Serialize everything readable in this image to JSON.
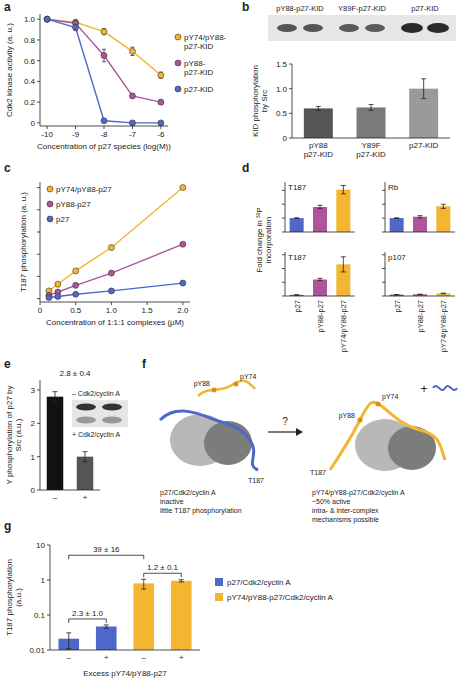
{
  "chart_data": [
    {
      "panel": "a",
      "type": "line",
      "xlabel": "Concentration of p27 species (log(M))",
      "ylabel": "Cdk2 kinase activity (a. u.)",
      "x": [
        -10,
        -9,
        -8,
        -7,
        -6
      ],
      "series": [
        {
          "name": "pY74/pY88-p27-KID",
          "color": "#f2b630",
          "marker": "circle",
          "values": [
            1.0,
            0.97,
            0.88,
            0.69,
            0.46
          ],
          "errors": [
            0.01,
            0.02,
            0.03,
            0.04,
            0.03
          ]
        },
        {
          "name": "pY88-p27-KID",
          "color": "#b0559c",
          "marker": "circle",
          "values": [
            1.0,
            0.96,
            0.65,
            0.26,
            0.2
          ],
          "errors": [
            0.01,
            0.03,
            0.06,
            0.02,
            0.02
          ]
        },
        {
          "name": "p27-KID",
          "color": "#4f67c8",
          "marker": "circle",
          "values": [
            1.0,
            0.92,
            0.02,
            0.0,
            0.0
          ],
          "errors": [
            0.01,
            0.03,
            0.01,
            0.01,
            0.01
          ]
        }
      ],
      "xlim": [
        -10.25,
        -5.75
      ],
      "ylim": [
        -0.03,
        1.05
      ],
      "xticks": [
        -10,
        -9,
        -8,
        -7,
        -6
      ],
      "yticks": [
        0,
        0.2,
        0.4,
        0.6,
        0.8,
        {
          "value": 1,
          "label": "1.0"
        }
      ],
      "legend": "right"
    },
    {
      "panel": "b",
      "type": "bar",
      "ylabel": "KID phosphorylation by Src",
      "categories": [
        "pY88 p27-KID",
        "Y89F p27-KID",
        "p27-KID"
      ],
      "values": [
        0.6,
        0.62,
        1.0
      ],
      "errors": [
        0.04,
        0.06,
        0.2
      ],
      "colors": [
        "#555555",
        "#7a7a7a",
        "#9a9a9a"
      ],
      "ylim": [
        0,
        1.5
      ],
      "yticks": [
        0,
        0.5,
        {
          "value": 1,
          "label": "1.0"
        },
        1.5
      ],
      "gel_labels": [
        "pY88-p27-KID",
        "Y89F-p27-KID",
        "p27-KID"
      ]
    },
    {
      "panel": "c",
      "type": "line",
      "xlabel": "Concentration of 1:1:1 complexes (μM)",
      "ylabel": "T187 phosphorylation (a. u.)",
      "x": [
        0.125,
        0.25,
        0.5,
        1,
        2
      ],
      "series": [
        {
          "name": "pY74/pY88-p27",
          "color": "#f2b630",
          "marker": "circle",
          "values": [
            0.07,
            0.13,
            0.25,
            0.46,
            1.0
          ]
        },
        {
          "name": "pY88-p27",
          "color": "#b0559c",
          "marker": "circle",
          "values": [
            0.03,
            0.06,
            0.12,
            0.23,
            0.49
          ]
        },
        {
          "name": "p27",
          "color": "#4f67c8",
          "marker": "circle",
          "values": [
            0.01,
            0.02,
            0.04,
            0.07,
            0.14
          ]
        }
      ],
      "xlim": [
        0,
        2.1
      ],
      "ylim": [
        -0.03,
        1.05
      ],
      "xticks": [
        0,
        0.5,
        {
          "value": 1,
          "label": "1.0"
        },
        1.5,
        {
          "value": 2,
          "label": "2.0"
        }
      ],
      "yticks": [
        0,
        0.2,
        0.4,
        0.6,
        0.8,
        1
      ],
      "tick_labels": "x",
      "legend": "upper left"
    },
    {
      "panel": "d",
      "type": "bar",
      "title": "T187",
      "ylabel": "Fold change in ³²P incorporation",
      "categories": [
        "p27",
        "pY88-p27",
        "pY74/pY88-p27"
      ],
      "values": [
        1,
        1.8,
        3.05
      ],
      "errors": [
        0.02,
        0.12,
        0.3
      ],
      "colors": [
        "#4f67c8",
        "#b0559c",
        "#f2b630"
      ],
      "ylim": [
        0,
        3.6
      ],
      "yticks": [
        0,
        1,
        2,
        3
      ],
      "tick_labels": false
    },
    {
      "type": "bar",
      "title": "Rb",
      "categories": [
        "p27",
        "pY88-p27",
        "pY74/pY88-p27"
      ],
      "values": [
        1,
        1.1,
        1.85
      ],
      "errors": [
        0.02,
        0.08,
        0.15
      ],
      "colors": [
        "#4f67c8",
        "#b0559c",
        "#f2b630"
      ],
      "ylim": [
        0,
        3.6
      ],
      "yticks": [
        0,
        1,
        2,
        3
      ],
      "tick_labels": false
    },
    {
      "type": "bar",
      "title": "T187",
      "categories": [
        "p27",
        "pY88-p27",
        "pY74/pY88-p27"
      ],
      "values": [
        0.8,
        12,
        23
      ],
      "errors": [
        0.1,
        0.8,
        5.5
      ],
      "colors": [
        "#4f67c8",
        "#b0559c",
        "#f2b630"
      ],
      "ylim": [
        0,
        32
      ],
      "yticks": [
        0,
        10,
        20,
        30
      ],
      "tick_labels": "x"
    },
    {
      "type": "bar",
      "title": "p107",
      "categories": [
        "p27",
        "pY88-p27",
        "pY74/pY88-p27"
      ],
      "values": [
        1,
        1.2,
        1.9
      ],
      "errors": [
        0.05,
        0.1,
        0.2
      ],
      "colors": [
        "#4f67c8",
        "#b0559c",
        "#f2b630"
      ],
      "ylim": [
        0,
        32
      ],
      "yticks": [
        0,
        10,
        20,
        30
      ],
      "tick_labels": "x"
    },
    {
      "panel": "e",
      "type": "bar",
      "ylabel": "Y phosphorylation of p27 by Src (a.u.)",
      "categories": [
        "–",
        "+"
      ],
      "values": [
        2.8,
        1.0
      ],
      "errors": [
        0.15,
        0.15
      ],
      "colors": [
        "#111111",
        "#555555"
      ],
      "ylim": [
        0,
        3.3
      ],
      "yticks": [
        0,
        1,
        2,
        3
      ],
      "annotations": [
        "2.8 ± 0.4"
      ],
      "gel_labels": [
        "– Cdk2/cyclin A",
        "+ Cdk2/cyclin A"
      ]
    },
    {
      "panel": "g",
      "type": "bar",
      "log": "y",
      "xlabel": "Excess pY74/pY88-p27",
      "ylabel": "T187 phosphorylation (a.u.)",
      "categories": [
        "–",
        "+",
        "–",
        "+"
      ],
      "series": [
        {
          "name": "p27/Cdk2/cyclin A",
          "color": "#4f67c8",
          "values": [
            0.021,
            0.047,
            null,
            null
          ],
          "errors": [
            0.01,
            0.005,
            null,
            null
          ]
        },
        {
          "name": "pY74/pY88-p27/Cdk2/cyclin A",
          "color": "#f2b630",
          "values": [
            null,
            null,
            0.8,
            0.95
          ],
          "errors": [
            null,
            null,
            0.25,
            0.07
          ]
        }
      ],
      "ylim": [
        0.01,
        10
      ],
      "yticks": [
        0.01,
        0.1,
        1,
        10
      ],
      "annotations": [
        "2.3 ± 1.0",
        "39 ± 16",
        "1.2 ± 0.1"
      ],
      "legend": "right"
    }
  ],
  "diagram": {
    "panel": "f",
    "left_labels": [
      "pY88",
      "pY74",
      "T187"
    ],
    "left_caption": [
      "p27/Cdk2/cyclin A",
      "inactive",
      "little T187 phosphorylation"
    ],
    "arrow_label": "?",
    "plus_label": "+",
    "right_labels": [
      "pY88",
      "pY74",
      "T187"
    ],
    "right_caption": [
      "pY74/pY88-p27/Cdk2/cyclin A",
      "~50% active",
      "intra- & inter-complex mechanisms possible"
    ]
  }
}
